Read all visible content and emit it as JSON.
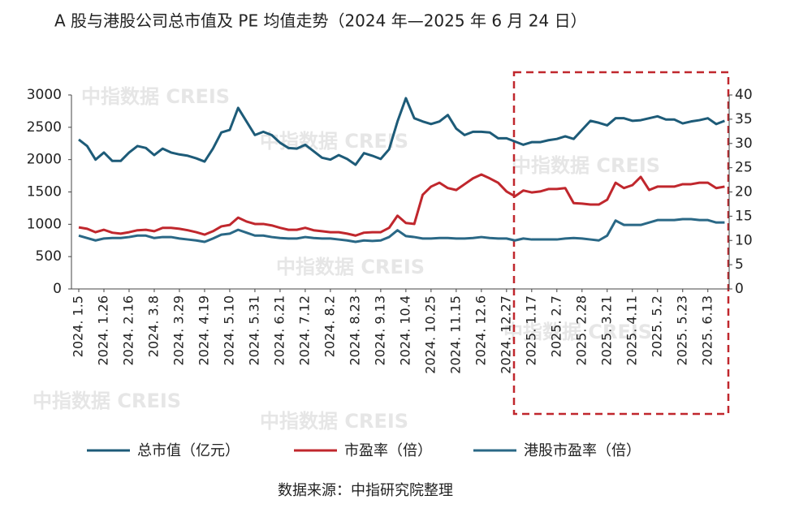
{
  "chart_data": {
    "type": "line",
    "title": "A 股与港股公司总市值及 PE 均值走势（2024 年—2025 年 6 月 24 日）",
    "source": "数据来源：中指研究院整理",
    "watermark": "中指数据 CREIS",
    "categories": [
      "2024. 1.5",
      null,
      null,
      "2024. 1.26",
      null,
      null,
      "2024. 2.16",
      null,
      null,
      "2024. 3.8",
      null,
      null,
      "2024. 3.29",
      null,
      null,
      "2024. 4.19",
      null,
      null,
      "2024. 5.10",
      null,
      null,
      "2024. 5.31",
      null,
      null,
      "2024. 6.21",
      null,
      null,
      "2024. 7.12",
      null,
      null,
      "2024. 8.2",
      null,
      null,
      "2024. 8.23",
      null,
      null,
      "2024. 9.13",
      null,
      null,
      "2024. 10.4",
      null,
      null,
      "2024. 10.25",
      null,
      null,
      "2024. 11.15",
      null,
      null,
      "2024. 12.6",
      null,
      null,
      "2024. 12.27",
      null,
      null,
      "2025. 1.17",
      null,
      null,
      "2025. 2.7",
      null,
      null,
      "2025. 2.28",
      null,
      null,
      "2025. 3.21",
      null,
      null,
      "2025. 4.11",
      null,
      null,
      "2025. 5.2",
      null,
      null,
      "2025. 5.23",
      null,
      null,
      "2025. 6.13",
      null,
      null
    ],
    "series": [
      {
        "name": "总市值（亿元）",
        "color": "#1d5b78",
        "axis": "y",
        "values": [
          2310,
          2210,
          2000,
          2110,
          1980,
          1980,
          2110,
          2210,
          2180,
          2070,
          2170,
          2110,
          2080,
          2060,
          2020,
          1970,
          2170,
          2420,
          2460,
          2800,
          2590,
          2380,
          2430,
          2380,
          2260,
          2180,
          2170,
          2230,
          2130,
          2030,
          2000,
          2070,
          2010,
          1920,
          2100,
          2060,
          2010,
          2160,
          2590,
          2950,
          2640,
          2590,
          2550,
          2590,
          2690,
          2480,
          2380,
          2430,
          2430,
          2420,
          2330,
          2330,
          2280,
          2230,
          2270,
          2270,
          2300,
          2320,
          2360,
          2320,
          2460,
          2600,
          2570,
          2530,
          2640,
          2640,
          2600,
          2610,
          2640,
          2670,
          2620,
          2620,
          2560,
          2590,
          2610,
          2640,
          2550,
          2600
        ]
      },
      {
        "name": "市盈率（倍）",
        "color": "#c0272d",
        "axis": "y2",
        "values": [
          12.7,
          12.4,
          11.7,
          12.2,
          11.6,
          11.4,
          11.7,
          12.1,
          12.2,
          11.9,
          12.6,
          12.6,
          12.4,
          12.1,
          11.7,
          11.2,
          11.9,
          12.9,
          13.2,
          14.7,
          13.9,
          13.4,
          13.4,
          13.1,
          12.6,
          12.2,
          12.2,
          12.6,
          12.1,
          11.9,
          11.7,
          11.7,
          11.4,
          11.0,
          11.6,
          11.7,
          11.7,
          12.6,
          15.1,
          13.6,
          13.4,
          19.4,
          21.1,
          21.9,
          20.8,
          20.4,
          21.6,
          22.8,
          23.6,
          22.8,
          21.9,
          20.1,
          19.1,
          20.3,
          19.9,
          20.1,
          20.6,
          20.6,
          20.8,
          17.7,
          17.6,
          17.4,
          17.4,
          18.4,
          21.9,
          20.8,
          21.4,
          23.1,
          20.4,
          21.1,
          21.1,
          21.1,
          21.6,
          21.6,
          21.9,
          21.9,
          20.8,
          21.1
        ]
      },
      {
        "name": "港股市盈率（倍）",
        "color": "#2a6886",
        "axis": "y2",
        "values": [
          11.0,
          10.5,
          10.0,
          10.4,
          10.5,
          10.5,
          10.7,
          11.0,
          11.0,
          10.5,
          10.7,
          10.7,
          10.4,
          10.2,
          10.0,
          9.7,
          10.4,
          11.2,
          11.4,
          12.2,
          11.6,
          11.0,
          11.0,
          10.7,
          10.5,
          10.4,
          10.4,
          10.7,
          10.5,
          10.4,
          10.4,
          10.2,
          10.0,
          9.7,
          10.0,
          9.9,
          10.0,
          10.7,
          12.1,
          10.9,
          10.7,
          10.4,
          10.4,
          10.5,
          10.5,
          10.4,
          10.4,
          10.5,
          10.7,
          10.5,
          10.4,
          10.4,
          10.0,
          10.4,
          10.2,
          10.2,
          10.2,
          10.2,
          10.4,
          10.5,
          10.4,
          10.2,
          10.0,
          11.0,
          14.1,
          13.2,
          13.2,
          13.2,
          13.7,
          14.2,
          14.2,
          14.2,
          14.4,
          14.4,
          14.2,
          14.2,
          13.7,
          13.7
        ]
      }
    ],
    "ylim": [
      0,
      3000
    ],
    "yticks": [
      0,
      500,
      1000,
      1500,
      2000,
      2500,
      3000
    ],
    "y2lim": [
      0,
      40
    ],
    "y2ticks": [
      0,
      5,
      10,
      15,
      20,
      25,
      30,
      35,
      40
    ],
    "grid": false
  }
}
